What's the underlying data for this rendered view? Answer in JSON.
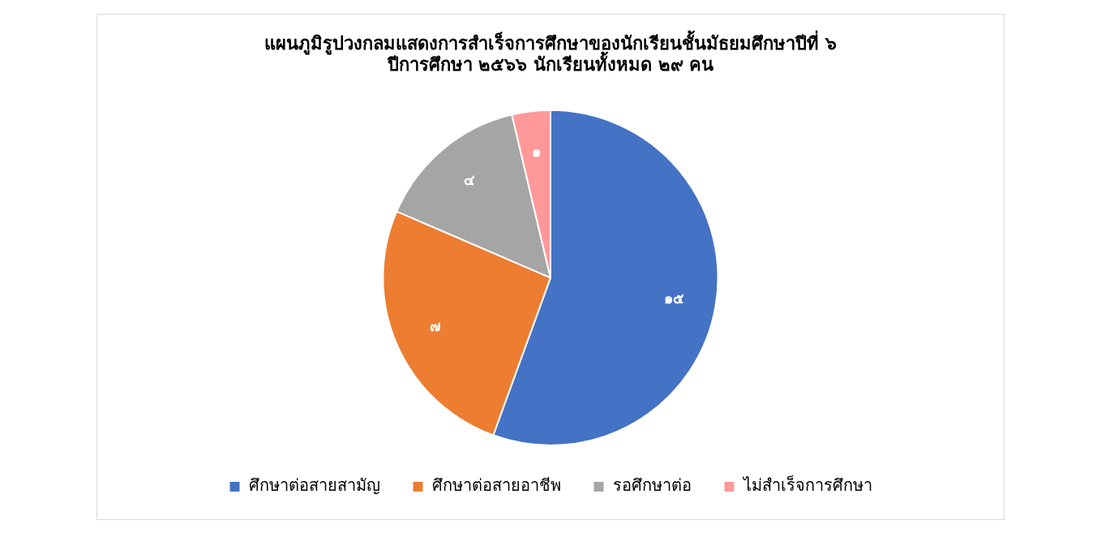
{
  "chart_data": {
    "type": "pie",
    "title": "แผนภูมิรูปวงกลมแสดงการสำเร็จการศึกษาของนักเรียนชั้นมัธยมศึกษาปีที่ ๖\nปีการศึกษา ๒๕๖๖ นักเรียนทั้งหมด ๒๙ คน",
    "categories": [
      "ศึกษาต่อสายสามัญ",
      "ศึกษาต่อสายอาชีพ",
      "รอศึกษาต่อ",
      "ไม่สำเร็จการศึกษา"
    ],
    "values": [
      15,
      7,
      4,
      1
    ],
    "value_labels": [
      "๑๕",
      "๗",
      "๔",
      "๑"
    ],
    "colors": [
      "#4472c4",
      "#ed7d31",
      "#a5a5a5",
      "#ff9999"
    ],
    "legend": "bottom"
  }
}
